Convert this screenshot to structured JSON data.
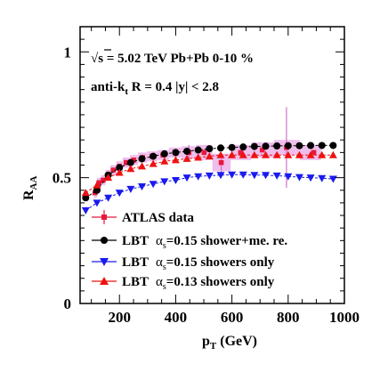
{
  "chart_data": {
    "type": "scatter",
    "xlabel": "p",
    "xlabel_sub": "T",
    "xlabel_unit": " (GeV)",
    "ylabel": "R",
    "ylabel_sub": "AA",
    "xlim": [
      60,
      1000
    ],
    "ylim": [
      0,
      1.1
    ],
    "x_ticks": [
      200,
      400,
      600,
      800,
      1000
    ],
    "x_tick_labels": [
      "200",
      "400",
      "600",
      "800",
      "1000"
    ],
    "y_ticks": [
      0,
      0.5,
      1
    ],
    "y_tick_labels": [
      "0",
      "0.5",
      "1"
    ],
    "grid": false,
    "legend_position": "bottom-left",
    "annotations": [
      {
        "parts": [
          "√s",
          " = 5.02 TeV Pb+Pb 0-10 %"
        ]
      },
      {
        "parts": [
          "anti-k",
          "t",
          " R = 0.4 |y| < 2.8"
        ]
      }
    ],
    "series": [
      {
        "name": "ATLAS data",
        "marker": "square",
        "color": "#e8183c",
        "box_color": "#e8a8e6",
        "x": [
          113,
          127,
          142,
          158,
          178,
          200,
          224,
          251,
          282,
          316,
          355,
          398,
          447,
          501,
          562,
          631,
          708,
          794,
          891
        ],
        "y": [
          0.44,
          0.48,
          0.49,
          0.51,
          0.53,
          0.545,
          0.56,
          0.57,
          0.58,
          0.585,
          0.59,
          0.6,
          0.6,
          0.6,
          0.56,
          0.6,
          0.61,
          0.62,
          0.6
        ],
        "syst_half_width": [
          0.02,
          0.02,
          0.02,
          0.02,
          0.02,
          0.02,
          0.02,
          0.02,
          0.02,
          0.02,
          0.02,
          0.02,
          0.025,
          0.03,
          0.035,
          0.03,
          0.03,
          0.03,
          0.03
        ],
        "stat_err": [
          0,
          0,
          0,
          0,
          0,
          0,
          0,
          0,
          0,
          0,
          0,
          0,
          0.03,
          0,
          0.04,
          0,
          0,
          0.16,
          0
        ]
      },
      {
        "name_prefix": "LBT",
        "name_symbol": "α",
        "name_sub": "s",
        "name_suffix": "=0.15 shower+me. re.",
        "marker": "circle",
        "color": "#000000",
        "x": [
          80,
          120,
          160,
          200,
          240,
          280,
          320,
          360,
          400,
          440,
          480,
          520,
          560,
          600,
          640,
          680,
          720,
          760,
          800,
          840,
          880,
          920,
          960
        ],
        "y": [
          0.42,
          0.45,
          0.51,
          0.54,
          0.56,
          0.575,
          0.585,
          0.595,
          0.6,
          0.605,
          0.61,
          0.615,
          0.618,
          0.62,
          0.622,
          0.624,
          0.625,
          0.626,
          0.627,
          0.627,
          0.628,
          0.628,
          0.628
        ]
      },
      {
        "name_prefix": "LBT",
        "name_symbol": "α",
        "name_sub": "s",
        "name_suffix": "=0.15 showers only",
        "marker": "triangle-down",
        "color": "#1a1aee",
        "x": [
          80,
          120,
          160,
          200,
          240,
          280,
          320,
          360,
          400,
          440,
          480,
          520,
          560,
          600,
          640,
          680,
          720,
          760,
          800,
          840,
          880,
          920,
          960
        ],
        "y": [
          0.37,
          0.4,
          0.42,
          0.44,
          0.455,
          0.465,
          0.475,
          0.485,
          0.49,
          0.5,
          0.505,
          0.508,
          0.51,
          0.512,
          0.512,
          0.51,
          0.51,
          0.508,
          0.505,
          0.502,
          0.5,
          0.498,
          0.495
        ]
      },
      {
        "name_prefix": "LBT",
        "name_symbol": "α",
        "name_sub": "s",
        "name_suffix": "=0.13 showers only",
        "marker": "triangle-up",
        "color": "#ee1111",
        "x": [
          80,
          120,
          160,
          200,
          240,
          280,
          320,
          360,
          400,
          440,
          480,
          520,
          560,
          600,
          640,
          680,
          720,
          760,
          800,
          840,
          880,
          920,
          960
        ],
        "y": [
          0.44,
          0.47,
          0.5,
          0.52,
          0.535,
          0.545,
          0.555,
          0.565,
          0.57,
          0.575,
          0.58,
          0.585,
          0.59,
          0.59,
          0.59,
          0.59,
          0.59,
          0.59,
          0.59,
          0.59,
          0.59,
          0.59,
          0.59
        ]
      }
    ]
  }
}
